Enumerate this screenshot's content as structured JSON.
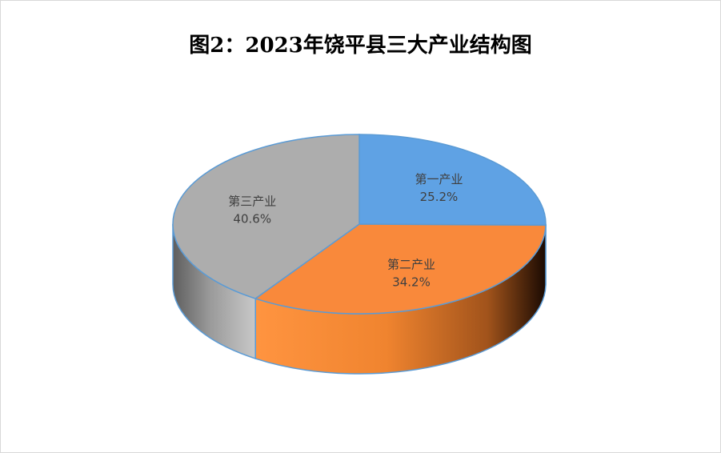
{
  "chart_data": {
    "type": "pie",
    "title": "图2：2023年饶平县三大产业结构图",
    "slices": [
      {
        "name": "第一产业",
        "value": 25.2,
        "label": "25.2%",
        "color": "#5fa2e4"
      },
      {
        "name": "第二产业",
        "value": 34.2,
        "label": "34.2%",
        "color": "#f9893b"
      },
      {
        "name": "第三产业",
        "value": 40.6,
        "label": "40.6%",
        "color": "#adadad"
      }
    ],
    "legend": "none",
    "style": "3d",
    "edge_color": "#5b9bd5"
  }
}
